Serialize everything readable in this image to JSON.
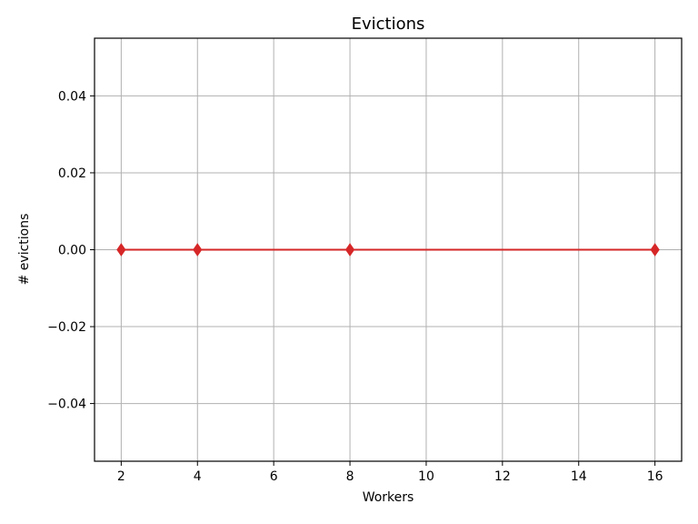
{
  "chart_data": {
    "type": "line",
    "title": "Evictions",
    "xlabel": "Workers",
    "ylabel": "# evictions",
    "xlim": [
      1.3,
      16.7
    ],
    "ylim": [
      -0.055,
      0.055
    ],
    "x_ticks": [
      2,
      4,
      6,
      8,
      10,
      12,
      14,
      16
    ],
    "y_ticks": [
      -0.04,
      -0.02,
      0.0,
      0.02,
      0.04
    ],
    "grid": true,
    "series": [
      {
        "x": [
          2,
          4,
          8,
          16
        ],
        "y": [
          0,
          0,
          0,
          0
        ],
        "color": "#d62728",
        "marker": "diamond"
      }
    ]
  }
}
